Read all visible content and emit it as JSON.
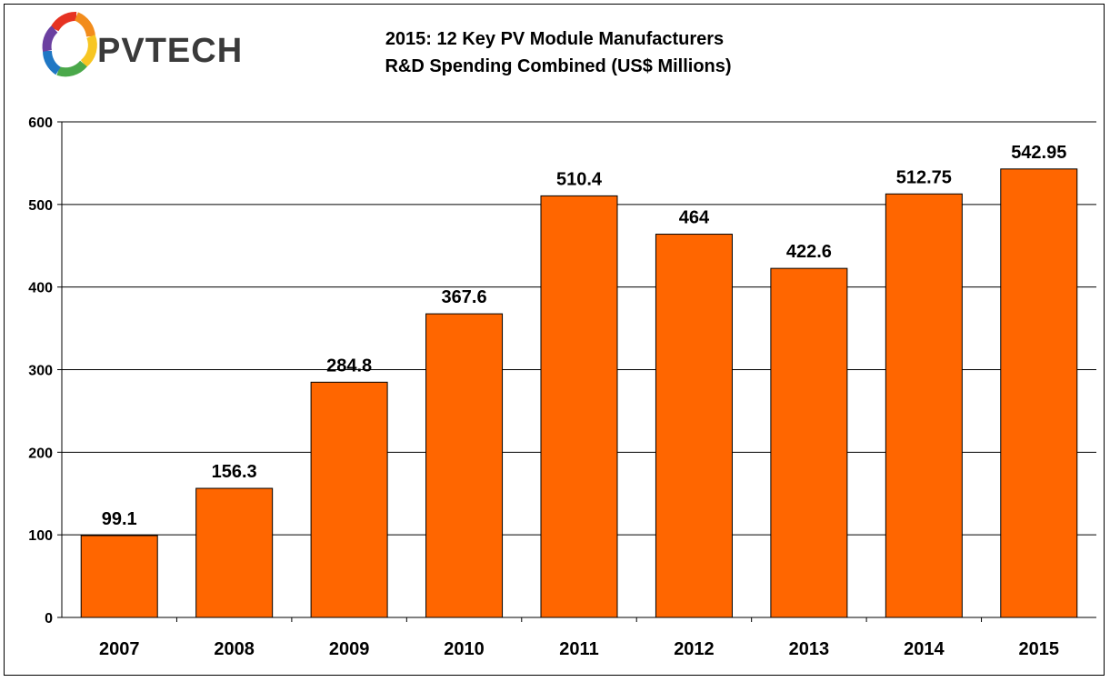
{
  "logo": {
    "text": "PVTECH",
    "colors": [
      "#e63222",
      "#f28c1c",
      "#f7c623",
      "#4aa84a",
      "#1f77c4",
      "#6b3fa0"
    ]
  },
  "chart_data": {
    "type": "bar",
    "title": "2015: 12 Key PV Module Manufacturers",
    "subtitle": "R&D Spending Combined (US$ Millions)",
    "categories": [
      "2007",
      "2008",
      "2009",
      "2010",
      "2011",
      "2012",
      "2013",
      "2014",
      "2015"
    ],
    "values": [
      99.1,
      156.3,
      284.8,
      367.6,
      510.4,
      464,
      422.6,
      512.75,
      542.95
    ],
    "data_labels": [
      "99.1",
      "156.3",
      "284.8",
      "367.6",
      "510.4",
      "464",
      "422.6",
      "512.75",
      "542.95"
    ],
    "xlabel": "",
    "ylabel": "",
    "ylim": [
      0,
      600
    ],
    "yticks": [
      "0",
      "100",
      "200",
      "300",
      "400",
      "500",
      "600"
    ],
    "grid": true,
    "bar_color": "#ff6600",
    "bar_edge_color": "#000000"
  }
}
